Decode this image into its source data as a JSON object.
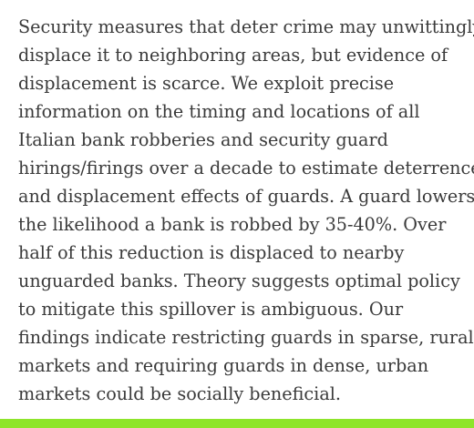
{
  "abstract": {
    "lines": [
      "Security measures that deter crime may unwittingly",
      "displace it to neighboring areas, but evidence of",
      "displacement is scarce. We exploit precise",
      "information on the timing and locations of all",
      "Italian bank robberies and security guard",
      "hirings/firings over a decade to estimate deterrence",
      "and displacement effects of guards. A guard lowers",
      "the likelihood a bank is robbed by 35-40%. Over",
      "half of this reduction is displaced to nearby",
      "unguarded banks. Theory suggests optimal policy",
      "to mitigate this spillover is ambiguous. Our",
      "findings indicate restricting guards in sparse, rural",
      "markets and requiring guards in dense, urban",
      "markets could be socially beneficial."
    ]
  },
  "colors": {
    "text": "#3a3a3a",
    "accent_bar": "#8ee52b",
    "background": "#ffffff"
  }
}
